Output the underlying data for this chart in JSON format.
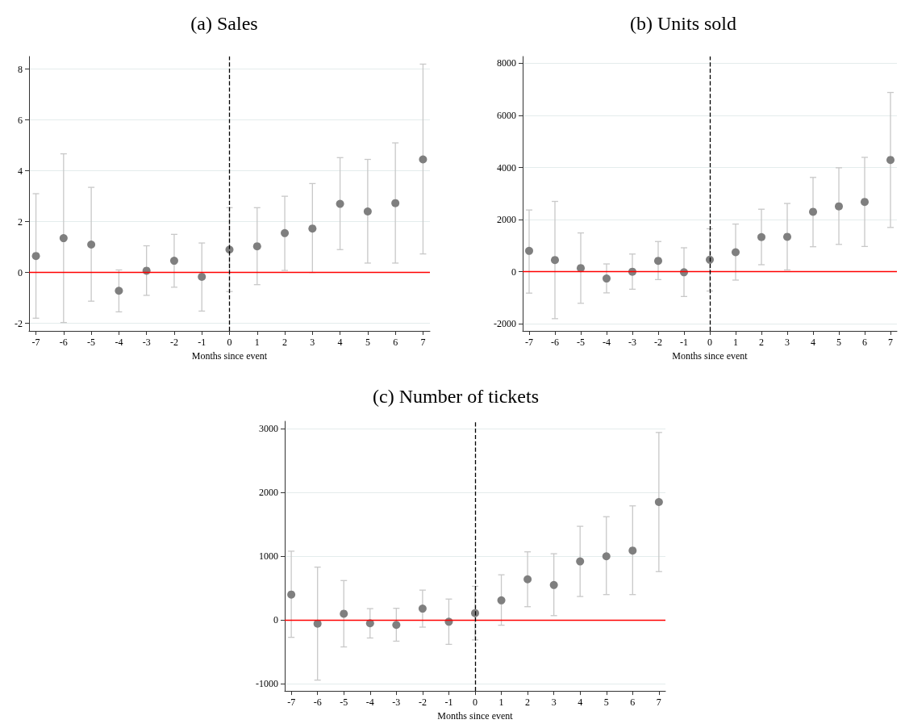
{
  "chart_data": [
    {
      "type": "scatter",
      "title": "(a) Sales",
      "xlabel": "Months since event",
      "x": [
        -7,
        -6,
        -5,
        -4,
        -3,
        -2,
        -1,
        0,
        1,
        2,
        3,
        4,
        5,
        6,
        7
      ],
      "xlim": [
        -7.25,
        7.25
      ],
      "xticks": [
        -7,
        -6,
        -5,
        -4,
        -3,
        -2,
        -1,
        0,
        1,
        2,
        3,
        4,
        5,
        6,
        7
      ],
      "ylim": [
        -2.3,
        8.5
      ],
      "yticks": [
        -2,
        0,
        2,
        4,
        6,
        8
      ],
      "grid": "y",
      "marker": "circle",
      "series": [
        {
          "color": "#7f7f7f",
          "values": [
            0.65,
            1.35,
            1.1,
            -0.72,
            0.07,
            0.46,
            -0.17,
            0.9,
            1.03,
            1.55,
            1.73,
            2.7,
            2.4,
            2.73,
            4.45
          ],
          "errors": [
            [
              -1.8,
              3.1
            ],
            [
              -1.97,
              4.67
            ],
            [
              -1.13,
              3.35
            ],
            [
              -1.55,
              0.1
            ],
            [
              -0.9,
              1.05
            ],
            [
              -0.58,
              1.5
            ],
            [
              -1.52,
              1.16
            ],
            [
              -0.75,
              2.55
            ],
            [
              -0.48,
              2.55
            ],
            [
              0.08,
              3.0
            ],
            [
              0,
              3.5
            ],
            [
              0.9,
              4.52
            ],
            [
              0.37,
              4.45
            ],
            [
              0.37,
              5.1
            ],
            [
              0.73,
              8.2
            ]
          ]
        }
      ],
      "ref_lines": [
        {
          "axis": "y",
          "value": 0,
          "color": "#ff0000",
          "line_style": "solid"
        },
        {
          "axis": "x",
          "value": 0,
          "color": "#000000",
          "line_style": "dashed"
        }
      ]
    },
    {
      "type": "scatter",
      "title": "(b) Units sold",
      "xlabel": "Months since event",
      "x": [
        -7,
        -6,
        -5,
        -4,
        -3,
        -2,
        -1,
        0,
        1,
        2,
        3,
        4,
        5,
        6,
        7
      ],
      "xlim": [
        -7.25,
        7.25
      ],
      "xticks": [
        -7,
        -6,
        -5,
        -4,
        -3,
        -2,
        -1,
        0,
        1,
        2,
        3,
        4,
        5,
        6,
        7
      ],
      "ylim": [
        -2270,
        8260
      ],
      "yticks": [
        -2000,
        0,
        2000,
        4000,
        6000,
        8000
      ],
      "grid": "y",
      "marker": "circle",
      "series": [
        {
          "color": "#7f7f7f",
          "values": [
            800,
            450,
            140,
            -260,
            0,
            420,
            -20,
            460,
            750,
            1330,
            1340,
            2300,
            2510,
            2680,
            4290
          ],
          "errors": [
            [
              -820,
              2370
            ],
            [
              -1800,
              2700
            ],
            [
              -1210,
              1490
            ],
            [
              -810,
              300
            ],
            [
              -670,
              680
            ],
            [
              -300,
              1160
            ],
            [
              -950,
              920
            ],
            [
              -740,
              1650
            ],
            [
              -320,
              1830
            ],
            [
              270,
              2400
            ],
            [
              70,
              2620
            ],
            [
              960,
              3620
            ],
            [
              1050,
              3990
            ],
            [
              970,
              4390
            ],
            [
              1700,
              6880
            ]
          ]
        }
      ],
      "ref_lines": [
        {
          "axis": "y",
          "value": 0,
          "color": "#ff0000",
          "line_style": "solid"
        },
        {
          "axis": "x",
          "value": 0,
          "color": "#000000",
          "line_style": "dashed"
        }
      ]
    },
    {
      "type": "scatter",
      "title": "(c) Number of tickets",
      "xlabel": "Months since event",
      "x": [
        -7,
        -6,
        -5,
        -4,
        -3,
        -2,
        -1,
        0,
        1,
        2,
        3,
        4,
        5,
        6,
        7
      ],
      "xlim": [
        -7.25,
        7.25
      ],
      "xticks": [
        -7,
        -6,
        -5,
        -4,
        -3,
        -2,
        -1,
        0,
        1,
        2,
        3,
        4,
        5,
        6,
        7
      ],
      "ylim": [
        -1110,
        3115
      ],
      "yticks": [
        -1000,
        0,
        1000,
        2000,
        3000
      ],
      "grid": "y",
      "marker": "circle",
      "series": [
        {
          "color": "#7f7f7f",
          "values": [
            400,
            -55,
            100,
            -50,
            -75,
            180,
            -25,
            110,
            310,
            640,
            550,
            920,
            1000,
            1090,
            1850
          ],
          "errors": [
            [
              -270,
              1080
            ],
            [
              -940,
              830
            ],
            [
              -420,
              620
            ],
            [
              -280,
              180
            ],
            [
              -330,
              185
            ],
            [
              -110,
              470
            ],
            [
              -380,
              330
            ],
            [
              -310,
              530
            ],
            [
              -80,
              710
            ],
            [
              210,
              1070
            ],
            [
              70,
              1040
            ],
            [
              370,
              1470
            ],
            [
              400,
              1620
            ],
            [
              400,
              1790
            ],
            [
              760,
              2940
            ]
          ]
        }
      ],
      "ref_lines": [
        {
          "axis": "y",
          "value": 0,
          "color": "#ff0000",
          "line_style": "solid"
        },
        {
          "axis": "x",
          "value": 0,
          "color": "#000000",
          "line_style": "dashed"
        }
      ]
    }
  ]
}
